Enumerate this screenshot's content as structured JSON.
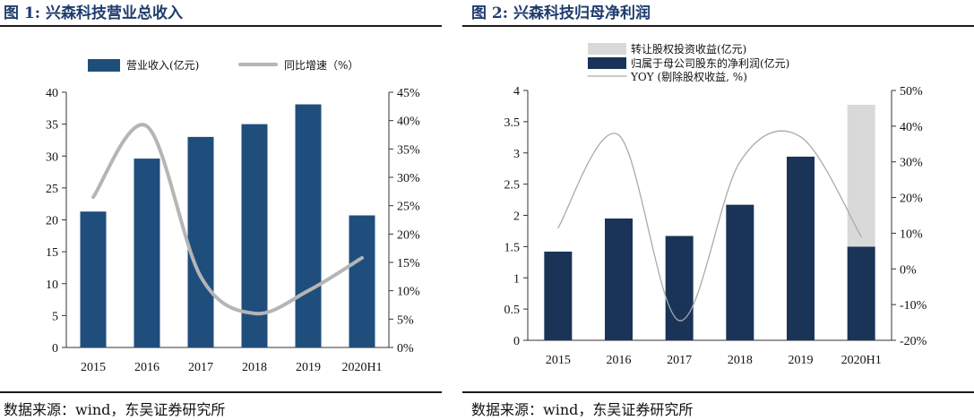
{
  "figures": [
    {
      "title": "图 1: 兴森科技营业总收入",
      "source": "数据来源：wind，东吴证券研究所"
    },
    {
      "title": "图 2: 兴森科技归母净利润",
      "source": "数据来源：wind，东吴证券研究所"
    }
  ],
  "chart_data": [
    {
      "type": "bar",
      "title": "兴森科技营业总收入",
      "categories": [
        "2015",
        "2016",
        "2017",
        "2018",
        "2019",
        "2020H1"
      ],
      "series": [
        {
          "name": "营业收入(亿元)",
          "type": "bar",
          "axis": "left",
          "values": [
            21.3,
            29.6,
            33.0,
            35.0,
            38.1,
            20.7
          ],
          "color": "#1f4e7d"
        },
        {
          "name": "同比增速（%）",
          "type": "line",
          "axis": "right",
          "values": [
            26.5,
            39.0,
            12.5,
            6.0,
            10.0,
            15.8
          ],
          "color": "#b5b5b5"
        }
      ],
      "ylim": [
        0,
        40
      ],
      "yticks": [
        "0",
        "5",
        "10",
        "15",
        "20",
        "25",
        "30",
        "35",
        "40"
      ],
      "y2lim": [
        0,
        45
      ],
      "y2ticks": [
        "0%",
        "5%",
        "10%",
        "15%",
        "20%",
        "25%",
        "30%",
        "35%",
        "40%",
        "45%"
      ],
      "legend": [
        "营业收入(亿元)",
        "同比增速（%）"
      ],
      "legend_position": "top"
    },
    {
      "type": "bar",
      "title": "兴森科技归母净利润",
      "categories": [
        "2015",
        "2016",
        "2017",
        "2018",
        "2019",
        "2020H1"
      ],
      "series": [
        {
          "name": "归属于母公司股东的净利润(亿元)",
          "type": "bar",
          "stack": "s",
          "axis": "left",
          "values": [
            1.42,
            1.95,
            1.67,
            2.17,
            2.94,
            1.5
          ],
          "color": "#1a3458"
        },
        {
          "name": "转让股权投资收益(亿元)",
          "type": "bar",
          "stack": "s",
          "axis": "left",
          "values": [
            0,
            0,
            0,
            0,
            0,
            2.27
          ],
          "color": "#d9d9d9"
        },
        {
          "name": "YOY (剔除股权收益, %)",
          "type": "line",
          "axis": "right",
          "values": [
            11.5,
            37.5,
            -14.5,
            30.0,
            37.0,
            9.0
          ],
          "color": "#aaaaaa"
        }
      ],
      "ylim": [
        0,
        4
      ],
      "yticks": [
        "0",
        "0.5",
        "1",
        "1.5",
        "2",
        "2.5",
        "3",
        "3.5",
        "4"
      ],
      "y2lim": [
        -20,
        50
      ],
      "y2ticks": [
        "-20%",
        "-10%",
        "0%",
        "10%",
        "20%",
        "30%",
        "40%",
        "50%"
      ],
      "legend": [
        "转让股权投资收益(亿元)",
        "归属于母公司股东的净利润(亿元)",
        "YOY (剔除股权收益, %)"
      ],
      "legend_position": "top-left"
    }
  ]
}
